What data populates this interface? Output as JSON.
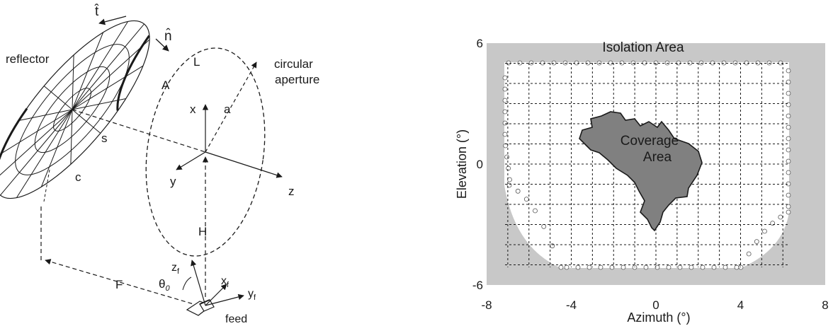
{
  "left_diagram": {
    "labels": {
      "t_hat": "t̂",
      "n_hat": "n̂",
      "reflector": "reflector",
      "L": "L",
      "circular": "circular",
      "aperture": "aperture",
      "A": "A",
      "x": "x",
      "a": "a",
      "s": "s",
      "y": "y",
      "z": "z",
      "c": "c",
      "H": "H",
      "F": "F",
      "zf": "z",
      "xf": "x",
      "yf": "y",
      "f_sub": "f",
      "theta0": "θ",
      "theta0_sub": "0",
      "feed": "feed"
    }
  },
  "chart_data": {
    "type": "map",
    "ylabel": "Elevation (°)",
    "xlabel": "Azimuth (°)",
    "xlim": [
      -8,
      8
    ],
    "ylim": [
      -6,
      6
    ],
    "x_ticks": [
      "-8",
      "-4",
      "0",
      "4",
      "8"
    ],
    "y_ticks": [
      "6",
      "0",
      "-6"
    ],
    "grid": true,
    "regions": [
      {
        "name": "Isolation Area",
        "color": "#c8c8c8"
      },
      {
        "name": "Coverage Area",
        "color": "#808080"
      }
    ],
    "annotations": {
      "isolation": "Isolation Area",
      "coverage_line1": "Coverage",
      "coverage_line2": "Area"
    },
    "colors": {
      "isolation": "#c8c8c8",
      "coverage": "#808080",
      "inner": "#ffffff",
      "grid": "#1a1a1a"
    }
  }
}
